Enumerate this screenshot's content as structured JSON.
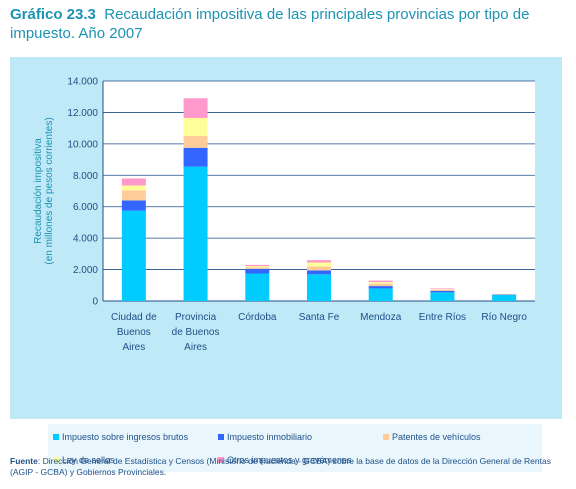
{
  "title": {
    "number": "Gráfico 23.3",
    "text": "Recaudación impositiva de las principales provincias por tipo de impuesto. Año 2007"
  },
  "source": {
    "label": "Fuente",
    "text": ": Dirección General de Estadística y Censos (Ministerio de Hacienda - GCBA) sobre la base de datos de la Dirección General de Rentas (AGIP - GCBA) y Gobiernos Provinciales."
  },
  "chart_data": {
    "type": "bar",
    "stacked": true,
    "ylabel": "Recaudación impositiva (en millones de pesos corrientes)",
    "ylim": [
      0,
      14000
    ],
    "yticks": [
      0,
      2000,
      4000,
      6000,
      8000,
      10000,
      12000,
      14000
    ],
    "ytick_labels": [
      "0",
      "2.000",
      "4.000",
      "6.000",
      "8.000",
      "10.000",
      "12.000",
      "14.000"
    ],
    "grid": true,
    "legend_position": "bottom",
    "categories": [
      [
        "Ciudad de",
        "Buenos",
        "Aires"
      ],
      [
        "Provincia",
        "de Buenos",
        "Aires"
      ],
      [
        "Córdoba"
      ],
      [
        "Santa Fe"
      ],
      [
        "Mendoza"
      ],
      [
        "Entre Ríos"
      ],
      [
        "Río Negro"
      ]
    ],
    "series": [
      {
        "name": "Impuesto sobre  ingresos brutos",
        "color": "#00ccff",
        "values": [
          5750,
          8550,
          1750,
          1700,
          800,
          550,
          380
        ]
      },
      {
        "name": "Impuesto inmobiliario",
        "color": "#3366ff",
        "values": [
          650,
          1200,
          300,
          250,
          150,
          100,
          30
        ]
      },
      {
        "name": "Patentes de vehículos",
        "color": "#ffcc99",
        "values": [
          650,
          750,
          100,
          250,
          150,
          70,
          20
        ]
      },
      {
        "name": "Ley de sellos",
        "color": "#ffff99",
        "values": [
          300,
          1150,
          70,
          250,
          100,
          30,
          20
        ]
      },
      {
        "name": "Otros impuestos y gravámenes",
        "color": "#ff99cc",
        "values": [
          450,
          1250,
          80,
          150,
          100,
          50,
          0
        ]
      }
    ]
  }
}
